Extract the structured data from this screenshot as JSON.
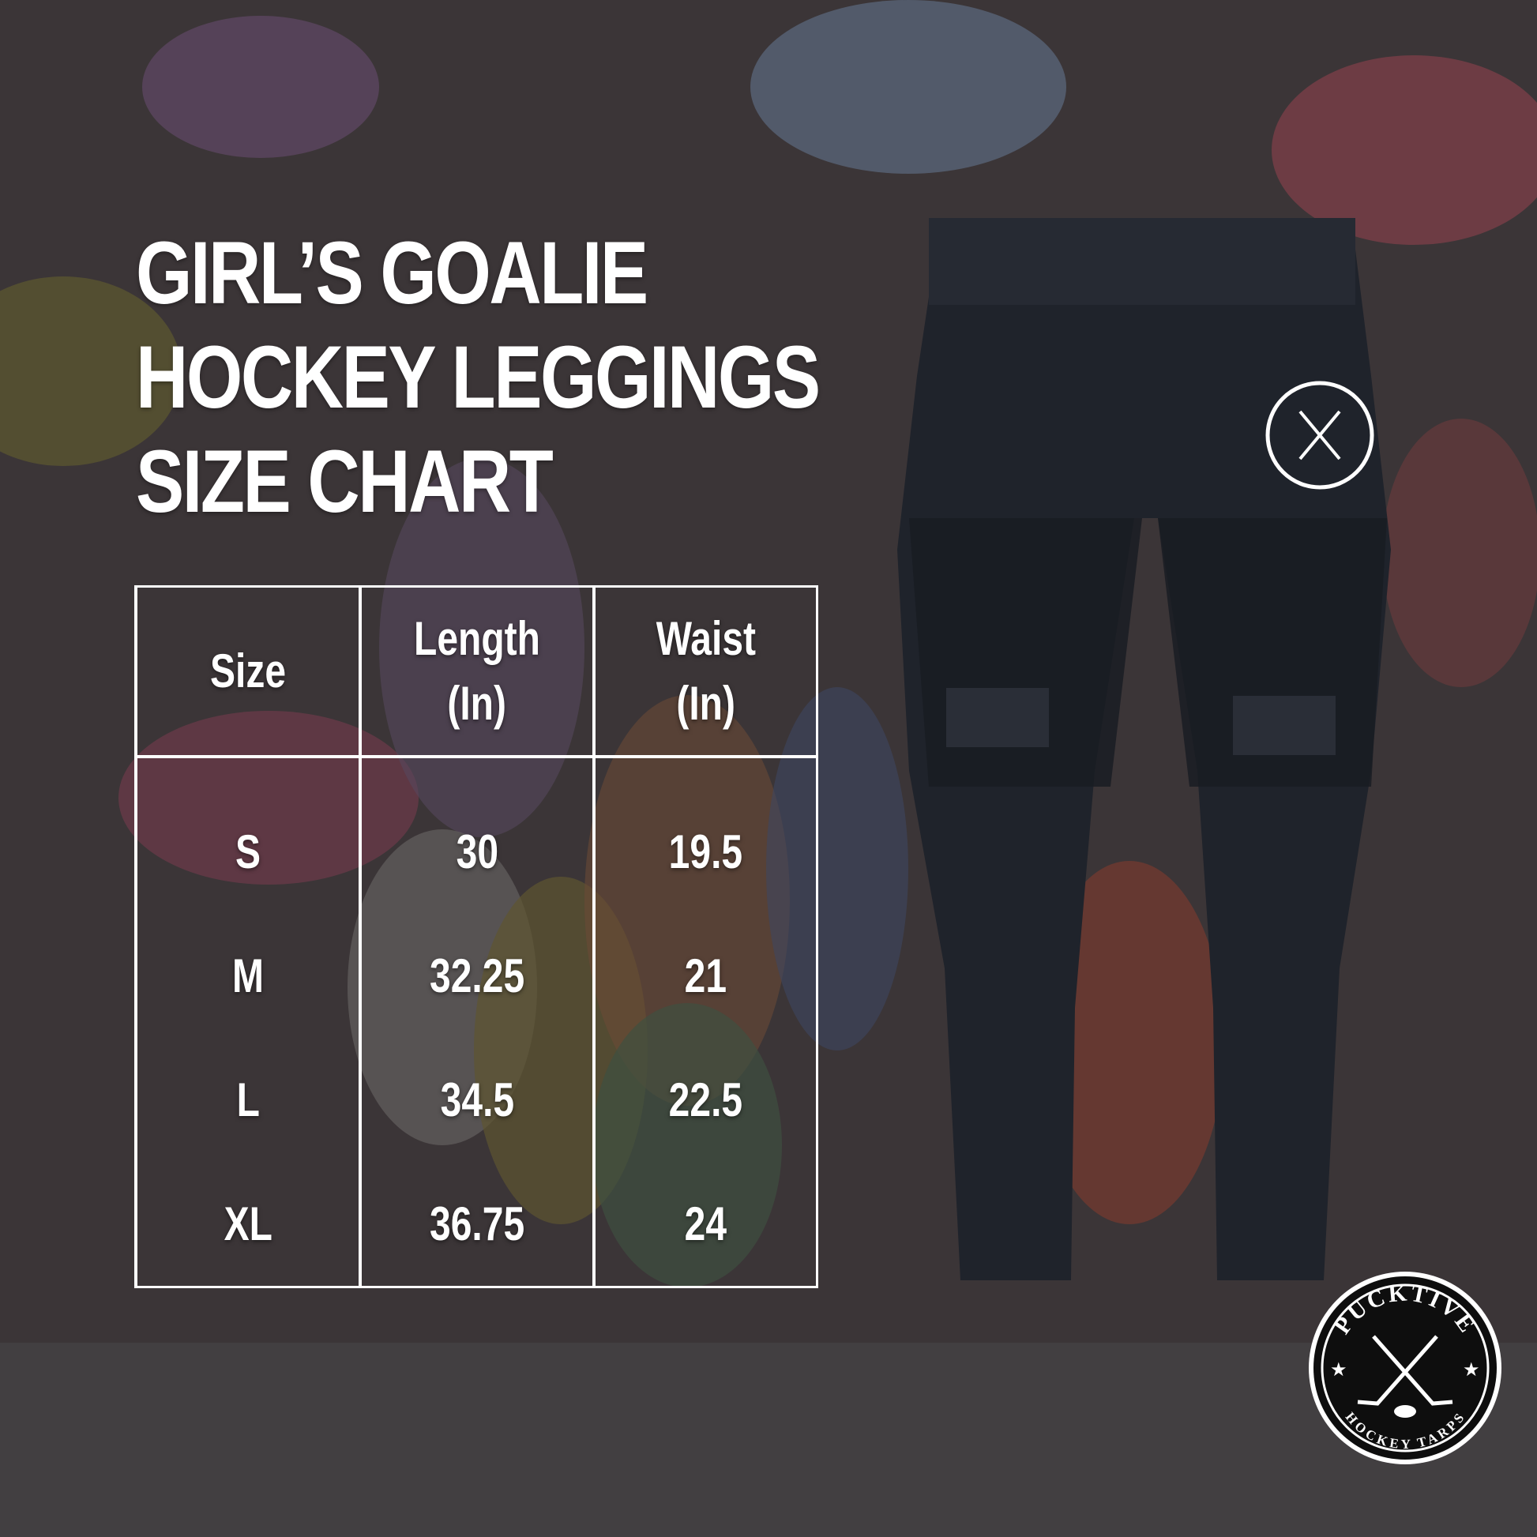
{
  "title_lines": [
    "GIRL’S GOALIE",
    "HOCKEY LEGGINGS",
    "SIZE CHART"
  ],
  "table": {
    "headers": [
      [
        "Size"
      ],
      [
        "Length",
        "(In)"
      ],
      [
        "Waist",
        "(In)"
      ]
    ],
    "rows": [
      [
        "S",
        "30",
        "19.5"
      ],
      [
        "M",
        "32.25",
        "21"
      ],
      [
        "L",
        "34.5",
        "22.5"
      ],
      [
        "XL",
        "36.75",
        "24"
      ]
    ]
  },
  "logo": {
    "brand": "PUCKTIVE",
    "tagline": "HOCKEY TARPS"
  },
  "colors": {
    "background": "#3b3537",
    "text": "#ffffff",
    "pants": "#1f232b"
  }
}
